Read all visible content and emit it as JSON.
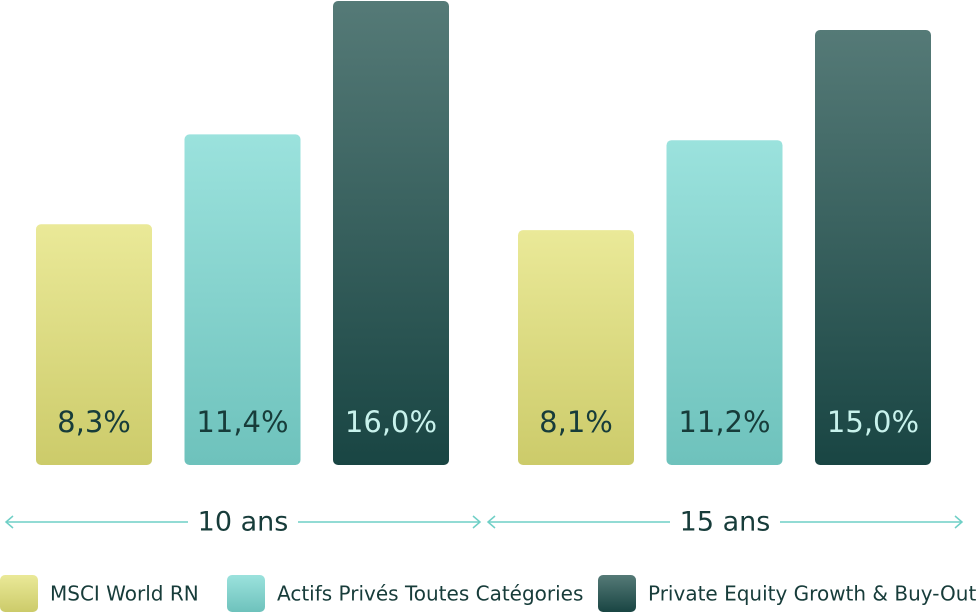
{
  "chart_data": {
    "type": "bar",
    "categories": [
      "10 ans",
      "15 ans"
    ],
    "series": [
      {
        "name": "MSCI World RN",
        "color": "#e3e176",
        "values": [
          8.3,
          8.1
        ],
        "value_labels": [
          "8,3%",
          "8,1%"
        ]
      },
      {
        "name": "Actifs Privés Toutes Catégories",
        "color": "#7ad8d1",
        "values": [
          11.4,
          11.2
        ],
        "value_labels": [
          "11,4%",
          "11,2%"
        ]
      },
      {
        "name": "Private Equity Growth & Buy-Out",
        "color": "#1c4d4a",
        "values": [
          16.0,
          15.0
        ],
        "value_labels": [
          "16,0%",
          "15,0%"
        ]
      }
    ],
    "ylim": [
      0,
      16
    ]
  }
}
